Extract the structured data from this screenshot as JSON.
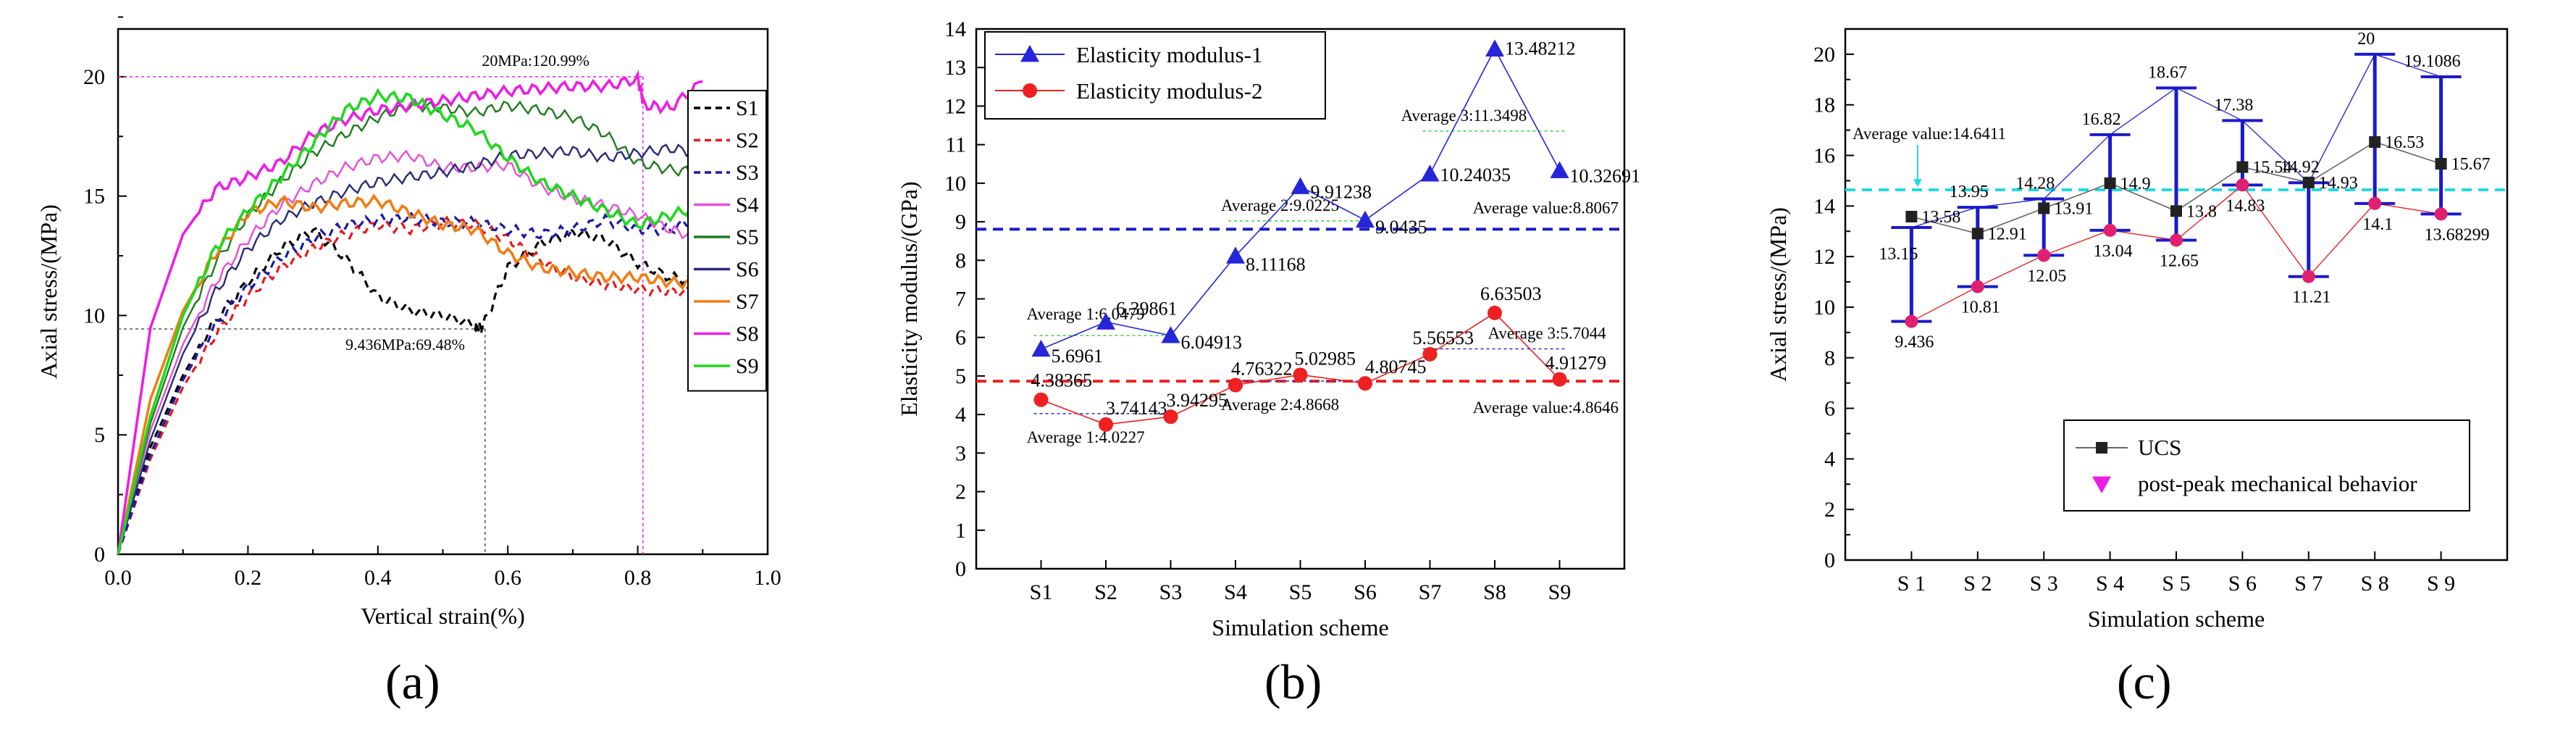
{
  "panels": [
    {
      "id": "a",
      "label": "(a)",
      "chart_data": {
        "type": "line",
        "xlabel": "Vertical strain(%)",
        "ylabel": "Axial stress/(MPa)",
        "xlim": [
          0,
          1.0
        ],
        "ylim": [
          0,
          22
        ],
        "xticks": [
          "0.0",
          "0.2",
          "0.4",
          "0.6",
          "0.8",
          "1.0"
        ],
        "yticks": [
          "0",
          "5",
          "10",
          "15",
          "20"
        ],
        "legend_position": "top-right",
        "series": [
          {
            "name": "S1",
            "color": "#000000",
            "dash": "10,7",
            "x": [
              0,
              0.05,
              0.1,
              0.15,
              0.2,
              0.25,
              0.3,
              0.35,
              0.4,
              0.45,
              0.5,
              0.55,
              0.56,
              0.6,
              0.65,
              0.7,
              0.75,
              0.8,
              0.85,
              0.9
            ],
            "y": [
              0,
              4.5,
              7.5,
              9.8,
              11.4,
              12.8,
              13.6,
              12.4,
              10.8,
              10.2,
              10.0,
              9.6,
              9.44,
              12.0,
              13.0,
              13.5,
              13.2,
              12.2,
              11.6,
              11.4
            ]
          },
          {
            "name": "S2",
            "color": "#e8191b",
            "dash": "10,7",
            "x": [
              0,
              0.05,
              0.1,
              0.15,
              0.2,
              0.25,
              0.3,
              0.35,
              0.4,
              0.45,
              0.5,
              0.55,
              0.6,
              0.65,
              0.7,
              0.75,
              0.8,
              0.85,
              0.9
            ],
            "y": [
              0,
              4.0,
              7.0,
              9.2,
              10.8,
              12.0,
              12.8,
              13.4,
              13.8,
              13.6,
              13.9,
              13.8,
              13.2,
              12.3,
              11.6,
              11.3,
              11.1,
              11.0,
              11.0
            ]
          },
          {
            "name": "S3",
            "color": "#1a1aa8",
            "dash": "10,7",
            "x": [
              0,
              0.05,
              0.1,
              0.15,
              0.2,
              0.25,
              0.3,
              0.35,
              0.4,
              0.45,
              0.5,
              0.55,
              0.6,
              0.65,
              0.7,
              0.75,
              0.8,
              0.85,
              0.9
            ],
            "y": [
              0,
              4.2,
              7.3,
              9.6,
              11.2,
              12.4,
              13.2,
              13.8,
              14.0,
              14.1,
              13.9,
              13.9,
              13.6,
              13.4,
              13.6,
              14.0,
              13.6,
              13.6,
              14.2
            ]
          },
          {
            "name": "S4",
            "color": "#e64fd8",
            "dash": "",
            "x": [
              0,
              0.05,
              0.1,
              0.15,
              0.2,
              0.25,
              0.3,
              0.35,
              0.4,
              0.45,
              0.5,
              0.55,
              0.6,
              0.65,
              0.7,
              0.75,
              0.8,
              0.85,
              0.9
            ],
            "y": [
              0,
              5.2,
              8.8,
              11.4,
              13.2,
              14.6,
              15.5,
              16.2,
              16.6,
              16.7,
              16.2,
              16.2,
              16.3,
              15.4,
              14.9,
              14.6,
              14.2,
              13.6,
              13.2
            ]
          },
          {
            "name": "S5",
            "color": "#1e7a1e",
            "dash": "",
            "x": [
              0,
              0.05,
              0.1,
              0.15,
              0.2,
              0.25,
              0.3,
              0.35,
              0.4,
              0.45,
              0.5,
              0.55,
              0.6,
              0.65,
              0.7,
              0.75,
              0.8,
              0.85,
              0.9
            ],
            "y": [
              0,
              5.5,
              9.5,
              12.2,
              14.2,
              15.6,
              16.8,
              17.6,
              18.3,
              18.8,
              18.7,
              18.5,
              18.8,
              18.6,
              18.3,
              17.6,
              16.4,
              16.1,
              16.0
            ]
          },
          {
            "name": "S6",
            "color": "#2a2a78",
            "dash": "",
            "x": [
              0,
              0.05,
              0.1,
              0.15,
              0.2,
              0.25,
              0.3,
              0.35,
              0.4,
              0.45,
              0.5,
              0.55,
              0.6,
              0.65,
              0.7,
              0.75,
              0.8,
              0.85,
              0.9
            ],
            "y": [
              0,
              4.8,
              8.4,
              11.0,
              12.8,
              14.0,
              14.7,
              15.2,
              15.6,
              15.8,
              16.0,
              16.3,
              16.7,
              16.8,
              16.9,
              16.6,
              16.8,
              17.0,
              16.8
            ]
          },
          {
            "name": "S7",
            "color": "#f07d14",
            "dash": "",
            "x": [
              0,
              0.05,
              0.1,
              0.15,
              0.2,
              0.25,
              0.3,
              0.35,
              0.4,
              0.45,
              0.5,
              0.55,
              0.6,
              0.65,
              0.7,
              0.75,
              0.8,
              0.85,
              0.9
            ],
            "y": [
              0,
              6.5,
              10.2,
              12.6,
              14.3,
              14.8,
              14.5,
              14.7,
              14.8,
              14.3,
              13.8,
              13.6,
              12.6,
              12.0,
              11.8,
              11.6,
              11.6,
              11.4,
              11.3
            ]
          },
          {
            "name": "S8",
            "color": "#ec1ee5",
            "dash": "",
            "x": [
              0,
              0.05,
              0.1,
              0.15,
              0.2,
              0.25,
              0.3,
              0.35,
              0.4,
              0.45,
              0.5,
              0.55,
              0.6,
              0.65,
              0.7,
              0.75,
              0.8,
              0.81,
              0.85,
              0.9
            ],
            "y": [
              0,
              9.5,
              13.4,
              15.3,
              15.8,
              16.4,
              17.6,
              18.2,
              18.6,
              18.8,
              19.0,
              19.2,
              19.4,
              19.5,
              19.6,
              19.6,
              19.9,
              18.8,
              18.7,
              19.8
            ]
          },
          {
            "name": "S9",
            "color": "#1ed81e",
            "dash": "",
            "x": [
              0,
              0.05,
              0.1,
              0.15,
              0.2,
              0.25,
              0.3,
              0.35,
              0.4,
              0.45,
              0.5,
              0.55,
              0.6,
              0.65,
              0.7,
              0.75,
              0.8,
              0.85,
              0.9
            ],
            "y": [
              0,
              5.8,
              10.0,
              12.8,
              14.4,
              15.8,
              17.2,
              18.6,
              19.2,
              19.1,
              18.4,
              17.8,
              16.6,
              15.6,
              15.0,
              14.4,
              13.8,
              14.2,
              14.6
            ]
          }
        ],
        "reference_lines": [
          {
            "color": "#ec1ee5",
            "x": 0.808,
            "y": 20.0
          },
          {
            "color": "#555555",
            "x": 0.565,
            "y": 9.436
          }
        ],
        "annotations": [
          {
            "text": "20MPa:120.99%",
            "x": 0.56,
            "y": 20.45
          },
          {
            "text": "9.436MPa:69.48%",
            "x": 0.35,
            "y": 8.55
          }
        ]
      }
    },
    {
      "id": "b",
      "label": "(b)",
      "chart_data": {
        "type": "line",
        "xlabel": "Simulation scheme",
        "ylabel": "Elasticity modulus/(GPa)",
        "categories": [
          "S1",
          "S2",
          "S3",
          "S4",
          "S5",
          "S6",
          "S7",
          "S8",
          "S9"
        ],
        "ylim": [
          0,
          14
        ],
        "yticks": [
          "0",
          "1",
          "2",
          "3",
          "4",
          "5",
          "6",
          "7",
          "8",
          "9",
          "10",
          "11",
          "12",
          "13",
          "14"
        ],
        "legend_position": "top-left",
        "series": [
          {
            "name": "Elasticity modulus-1",
            "color": "#2626d8",
            "marker": "triangle",
            "values": [
              5.6961,
              6.39861,
              6.04913,
              8.11168,
              9.91238,
              9.0435,
              10.24035,
              13.48212,
              10.32691
            ],
            "labels": [
              "5.6961",
              "6.39861",
              "6.04913",
              "8.11168",
              "9.91238",
              "9.0435",
              "10.24035",
              "13.48212",
              "10.32691"
            ]
          },
          {
            "name": "Elasticity modulus-2",
            "color": "#ee2020",
            "marker": "circle",
            "values": [
              4.38365,
              3.74143,
              3.94295,
              4.76322,
              5.02985,
              4.80745,
              5.56553,
              6.63503,
              4.91279
            ],
            "labels": [
              "4.38365",
              "3.74143",
              "3.94295",
              "4.76322",
              "5.02985",
              "4.80745",
              "5.56553",
              "6.63503",
              "4.91279"
            ]
          }
        ],
        "averages": [
          {
            "text": "Average value:8.8067",
            "value": 8.8067,
            "color": "#1a1acc"
          },
          {
            "text": "Average value:4.8646",
            "value": 4.8646,
            "color": "#ee2020"
          }
        ],
        "group_averages": [
          {
            "text": "Average 1:6.0479",
            "value": 6.0479,
            "color": "#3ad23a",
            "from": 1,
            "to": 3
          },
          {
            "text": "Average 2:9.0225",
            "value": 9.0225,
            "color": "#3ad23a",
            "from": 4,
            "to": 6
          },
          {
            "text": "Average 3:11.3498",
            "value": 11.3498,
            "color": "#3ad23a",
            "from": 7,
            "to": 9
          },
          {
            "text": "Average 1:4.0227",
            "value": 4.0227,
            "color": "#2b2bd0",
            "from": 1,
            "to": 3
          },
          {
            "text": "Average 2:4.8668",
            "value": 4.8668,
            "color": "#2b2bd0",
            "from": 4,
            "to": 6
          },
          {
            "text": "Average 3:5.7044",
            "value": 5.7044,
            "color": "#2b2bd0",
            "from": 7,
            "to": 9
          }
        ]
      }
    },
    {
      "id": "c",
      "label": "(c)",
      "chart_data": {
        "type": "line",
        "xlabel": "Simulation scheme",
        "ylabel": "Axial stress/(MPa)",
        "categories": [
          "S 1",
          "S 2",
          "S 3",
          "S 4",
          "S 5",
          "S 6",
          "S 7",
          "S 8",
          "S 9"
        ],
        "ylim": [
          0,
          21
        ],
        "yticks": [
          "0",
          "2",
          "4",
          "6",
          "8",
          "10",
          "12",
          "14",
          "16",
          "18",
          "20"
        ],
        "legend_position": "bottom-right",
        "average": {
          "text": "Average value:14.6411",
          "value": 14.6411,
          "color": "#22d8e8"
        },
        "series": [
          {
            "name": "UCS",
            "color": "#444444",
            "marker": "square",
            "values": [
              13.58,
              12.91,
              13.91,
              14.9,
              13.8,
              15.54,
              14.93,
              16.53,
              15.67
            ],
            "labels": [
              "13.58",
              "12.91",
              "13.91",
              "14.9",
              "13.8",
              "15.54",
              "14.93",
              "16.53",
              "15.67"
            ]
          },
          {
            "name": "post-peak mechanical behavior",
            "color": "#ec1ee5",
            "marker": "triangle-down",
            "values": [
              9.436,
              10.81,
              12.05,
              13.04,
              12.65,
              14.83,
              11.21,
              14.1,
              13.68299
            ],
            "labels": [
              "9.436",
              "10.81",
              "12.05",
              "13.04",
              "12.65",
              "14.83",
              "11.21",
              "14.1",
              "13.68299"
            ]
          }
        ],
        "ranges": {
          "highs": [
            13.15,
            13.95,
            14.28,
            16.82,
            18.67,
            17.38,
            14.92,
            20.0,
            19.1086
          ],
          "high_labels": [
            "13.15",
            "13.95",
            "14.28",
            "16.82",
            "18.67",
            "17.38",
            "14.92",
            "20",
            "19.1086"
          ],
          "lows": [
            9.436,
            10.81,
            12.05,
            13.04,
            12.65,
            14.83,
            11.21,
            14.1,
            13.68299
          ]
        }
      }
    }
  ]
}
